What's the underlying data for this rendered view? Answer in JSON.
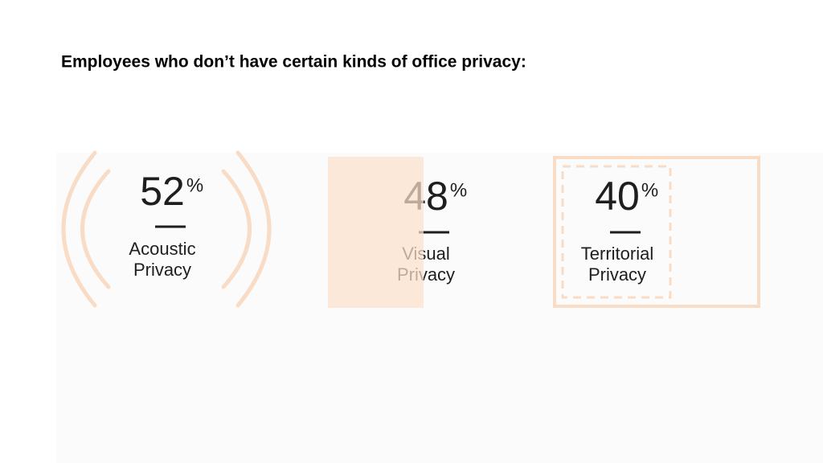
{
  "title": "Employees who don’t have certain kinds of office privacy:",
  "stats": [
    {
      "value": 52,
      "unit": "%",
      "label_lines": [
        "Acoustic",
        "Privacy"
      ]
    },
    {
      "value": 48,
      "unit": "%",
      "label_lines": [
        "Visual",
        "Privacy"
      ]
    },
    {
      "value": 40,
      "unit": "%",
      "label_lines": [
        "Territorial",
        "Privacy"
      ]
    }
  ]
}
